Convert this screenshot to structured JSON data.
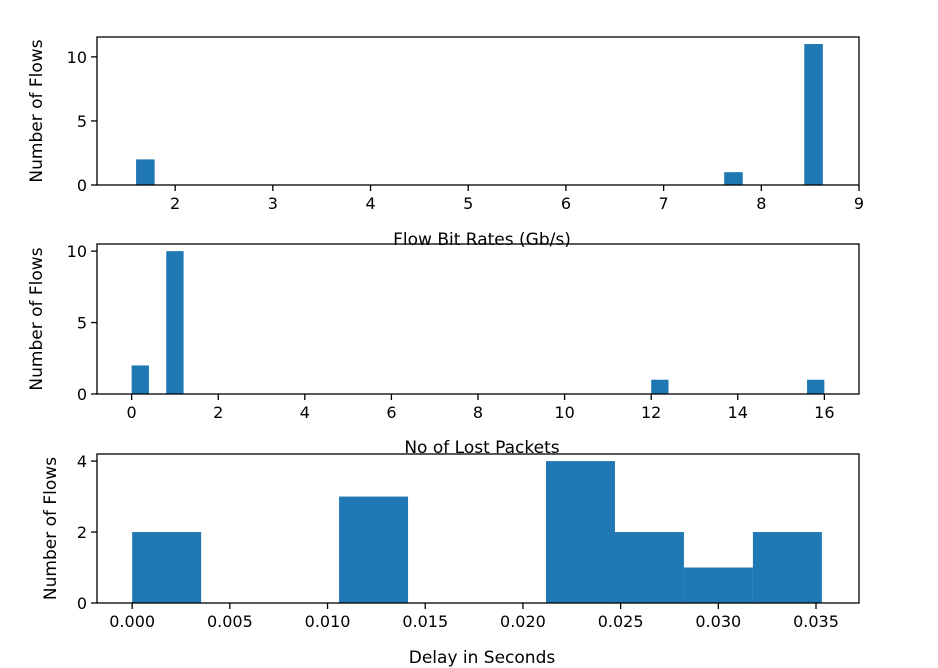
{
  "colors": {
    "bar": "#1f77b4",
    "axis": "#000000",
    "background": "#ffffff"
  },
  "chart_data": [
    {
      "type": "bar",
      "title": "",
      "xlabel": "Flow Bit Rates (Gb/s)",
      "ylabel": "Number of Flows",
      "xlim": [
        1.2,
        9.0
      ],
      "ylim": [
        0,
        11.55
      ],
      "xticks": [
        2,
        3,
        4,
        5,
        6,
        7,
        8,
        9
      ],
      "yticks": [
        0,
        5,
        10
      ],
      "bins": [
        {
          "x0": 1.6,
          "x1": 1.79,
          "value": 2
        },
        {
          "x0": 7.62,
          "x1": 7.81,
          "value": 1
        },
        {
          "x0": 8.44,
          "x1": 8.63,
          "value": 11
        }
      ]
    },
    {
      "type": "bar",
      "title": "",
      "xlabel": "No of Lost Packets",
      "ylabel": "Number of Flows",
      "xlim": [
        -0.8,
        16.8
      ],
      "ylim": [
        0,
        10.5
      ],
      "xticks": [
        0,
        2,
        4,
        6,
        8,
        10,
        12,
        14,
        16
      ],
      "yticks": [
        0,
        5,
        10
      ],
      "bins": [
        {
          "x0": 0.0,
          "x1": 0.4,
          "value": 2
        },
        {
          "x0": 0.8,
          "x1": 1.2,
          "value": 10
        },
        {
          "x0": 12.0,
          "x1": 12.4,
          "value": 1
        },
        {
          "x0": 15.6,
          "x1": 16.0,
          "value": 1
        }
      ]
    },
    {
      "type": "bar",
      "title": "",
      "xlabel": "Delay in Seconds",
      "ylabel": "Number of Flows",
      "xlim": [
        -0.0018,
        0.0372
      ],
      "ylim": [
        0,
        4.2
      ],
      "xticks": [
        "0.000",
        "0.005",
        "0.010",
        "0.015",
        "0.020",
        "0.025",
        "0.030",
        "0.035"
      ],
      "yticks": [
        0,
        2,
        4
      ],
      "bins": [
        {
          "x0": 0.0,
          "x1": 0.00353,
          "value": 2
        },
        {
          "x0": 0.01059,
          "x1": 0.01412,
          "value": 3
        },
        {
          "x0": 0.02118,
          "x1": 0.02471,
          "value": 4
        },
        {
          "x0": 0.02471,
          "x1": 0.02824,
          "value": 2
        },
        {
          "x0": 0.02824,
          "x1": 0.03177,
          "value": 1
        },
        {
          "x0": 0.03177,
          "x1": 0.0353,
          "value": 2
        }
      ]
    }
  ]
}
